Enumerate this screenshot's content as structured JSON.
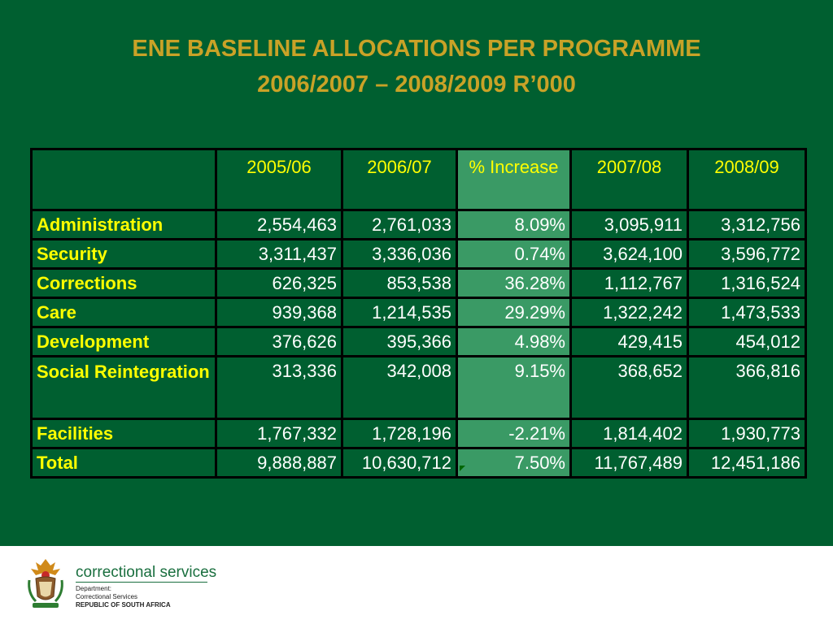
{
  "title": {
    "line1": "ENE BASELINE ALLOCATIONS PER PROGRAMME",
    "line2": "2006/2007 – 2008/2009 R’000"
  },
  "table": {
    "headers": [
      "",
      "2005/06",
      "2006/07",
      "% Increase",
      "2007/08",
      "2008/09"
    ],
    "rows": [
      [
        "Administration",
        "2,554,463",
        "2,761,033",
        "8.09%",
        "3,095,911",
        "3,312,756"
      ],
      [
        "Security",
        "3,311,437",
        "3,336,036",
        "0.74%",
        "3,624,100",
        "3,596,772"
      ],
      [
        "Corrections",
        "626,325",
        "853,538",
        "36.28%",
        "1,112,767",
        "1,316,524"
      ],
      [
        "Care",
        "939,368",
        "1,214,535",
        "29.29%",
        "1,322,242",
        "1,473,533"
      ],
      [
        "Development",
        "376,626",
        "395,366",
        "4.98%",
        "429,415",
        "454,012"
      ],
      [
        "Social Reintegration",
        "313,336",
        "342,008",
        "9.15%",
        "368,652",
        "366,816"
      ],
      [
        "Facilities",
        "1,767,332",
        "1,728,196",
        "-2.21%",
        "1,814,402",
        "1,930,773"
      ],
      [
        "Total",
        "9,888,887",
        "10,630,712",
        "7.50%",
        "11,767,489",
        "12,451,186"
      ]
    ]
  },
  "footer": {
    "brand": "correctional services",
    "dept_line1": "Department:",
    "dept_line2": "Correctional Services",
    "dept_line3": "REPUBLIC OF SOUTH AFRICA"
  },
  "colors": {
    "background": "#005f30",
    "title": "#c9a227",
    "header_text": "#ffff00",
    "highlight_column": "#3a9a65"
  }
}
